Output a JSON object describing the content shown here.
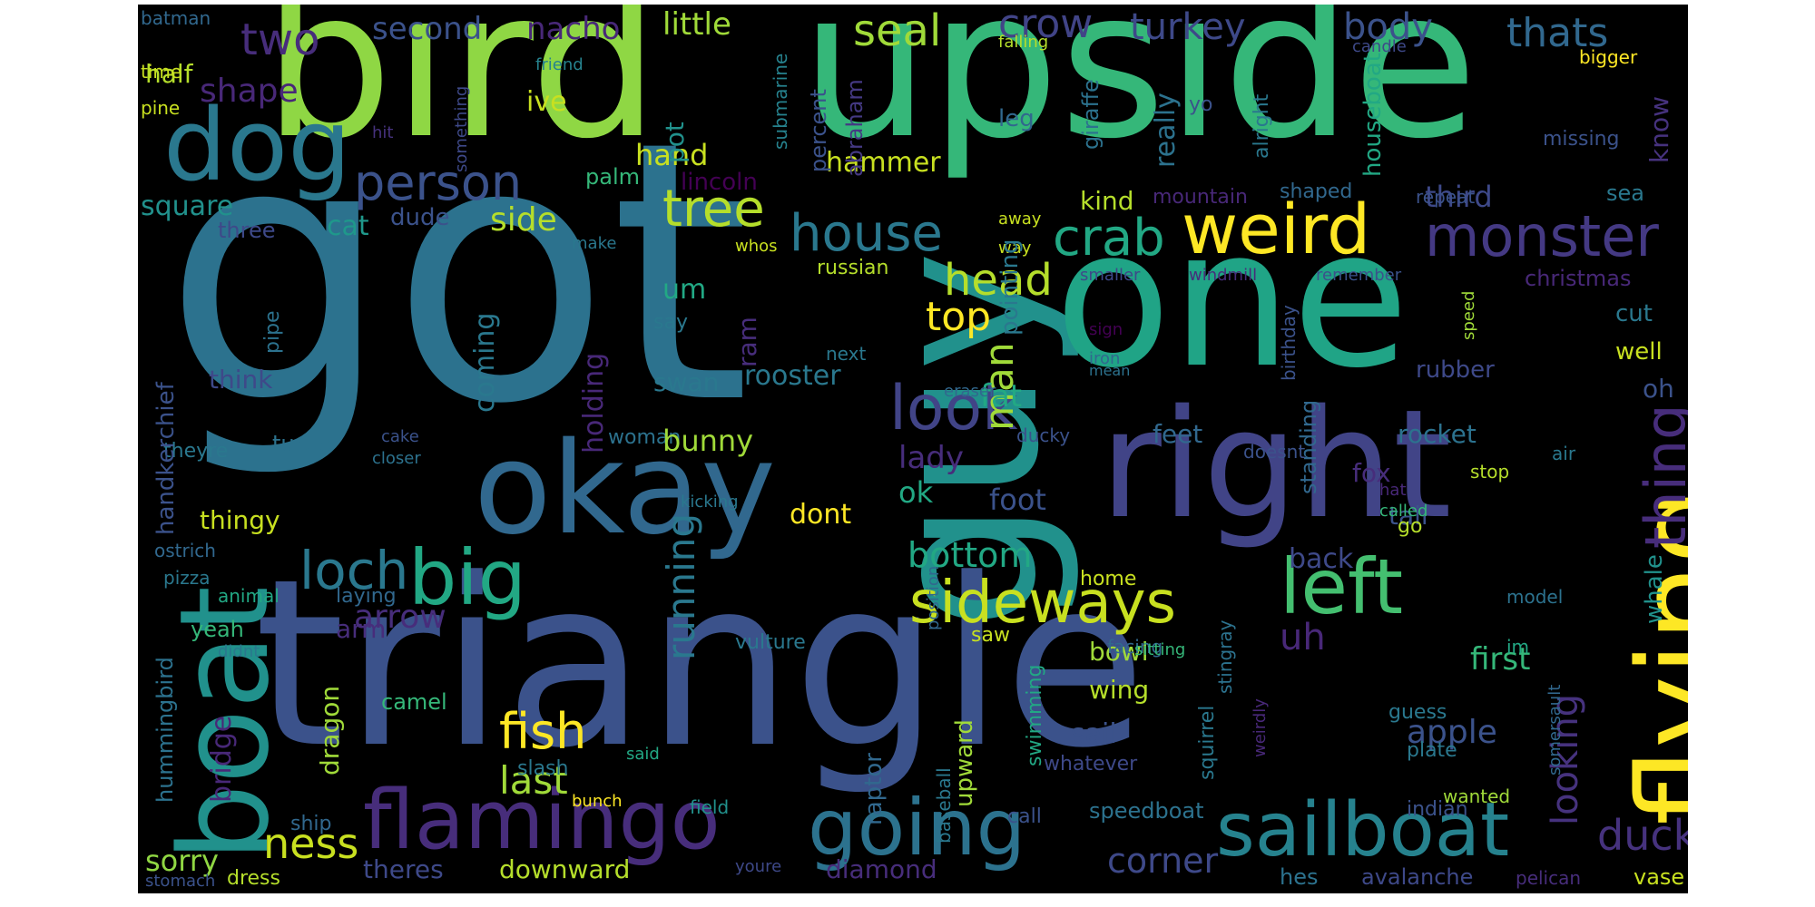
{
  "words": [
    {
      "text": "got",
      "color": "#2c728e"
    },
    {
      "text": "triangle",
      "color": "#3b528b"
    },
    {
      "text": "bird",
      "color": "#8fd744"
    },
    {
      "text": "upside",
      "color": "#35b779"
    },
    {
      "text": "guy",
      "color": "#21918c"
    },
    {
      "text": "one",
      "color": "#20a486"
    },
    {
      "text": "right",
      "color": "#414487"
    },
    {
      "text": "okay",
      "color": "#31688e"
    },
    {
      "text": "flying",
      "color": "#fde725"
    },
    {
      "text": "boat",
      "color": "#21918c"
    },
    {
      "text": "dog",
      "color": "#2a788e"
    },
    {
      "text": "flamingo",
      "color": "#472d7b"
    },
    {
      "text": "sailboat",
      "color": "#26828e"
    },
    {
      "text": "going",
      "color": "#2c728e"
    },
    {
      "text": "big",
      "color": "#22a884"
    },
    {
      "text": "left",
      "color": "#44bf70"
    },
    {
      "text": "sideways",
      "color": "#c8e020"
    },
    {
      "text": "weird",
      "color": "#fde725"
    },
    {
      "text": "monster",
      "color": "#443983"
    },
    {
      "text": "house",
      "color": "#2a788e"
    },
    {
      "text": "tree",
      "color": "#b5de2b"
    },
    {
      "text": "person",
      "color": "#3b528b"
    },
    {
      "text": "crab",
      "color": "#22a884"
    },
    {
      "text": "head",
      "color": "#b5de2b"
    },
    {
      "text": "look",
      "color": "#414487"
    },
    {
      "text": "thing",
      "color": "#472d7b"
    },
    {
      "text": "loch",
      "color": "#2a788e"
    },
    {
      "text": "fish",
      "color": "#fde725"
    },
    {
      "text": "ness",
      "color": "#c8e020"
    },
    {
      "text": "duck",
      "color": "#46327e"
    },
    {
      "text": "seal",
      "color": "#a0da39"
    },
    {
      "text": "crow",
      "color": "#414487"
    },
    {
      "text": "turkey",
      "color": "#3e4989"
    },
    {
      "text": "body",
      "color": "#3b528b"
    },
    {
      "text": "thats",
      "color": "#31688e"
    },
    {
      "text": "two",
      "color": "#472d7b"
    },
    {
      "text": "second",
      "color": "#3b528b"
    },
    {
      "text": "nacho",
      "color": "#482878"
    },
    {
      "text": "little",
      "color": "#a0da39"
    },
    {
      "text": "shape",
      "color": "#482878"
    },
    {
      "text": "half",
      "color": "#b5de2b"
    },
    {
      "text": "top",
      "color": "#fde725"
    },
    {
      "text": "man",
      "color": "#a0da39"
    },
    {
      "text": "running",
      "color": "#2a788e"
    },
    {
      "text": "bottom",
      "color": "#22a884"
    },
    {
      "text": "sorry",
      "color": "#90d743"
    },
    {
      "text": "last",
      "color": "#a0da39"
    },
    {
      "text": "corner",
      "color": "#3e4989"
    },
    {
      "text": "looking",
      "color": "#46327e"
    },
    {
      "text": "apple",
      "color": "#3b528b"
    },
    {
      "text": "arrow",
      "color": "#472d7b"
    },
    {
      "text": "uh",
      "color": "#482878"
    },
    {
      "text": "square",
      "color": "#21918c"
    },
    {
      "text": "side",
      "color": "#b5de2b"
    },
    {
      "text": "cat",
      "color": "#1f988b"
    },
    {
      "text": "dude",
      "color": "#3b528b"
    },
    {
      "text": "three",
      "color": "#3e4989"
    },
    {
      "text": "kind",
      "color": "#b5de2b"
    },
    {
      "text": "hammer",
      "color": "#c8e020"
    },
    {
      "text": "hand",
      "color": "#c8e020"
    },
    {
      "text": "palm",
      "color": "#35b779"
    },
    {
      "text": "ive",
      "color": "#c8e020"
    },
    {
      "text": "pot",
      "color": "#21918c"
    },
    {
      "text": "abraham",
      "color": "#443983"
    },
    {
      "text": "percent",
      "color": "#3b528b"
    },
    {
      "text": "leg",
      "color": "#31688e"
    },
    {
      "text": "giraffe",
      "color": "#2c728e"
    },
    {
      "text": "really",
      "color": "#2c728e"
    },
    {
      "text": "yo",
      "color": "#3b528b"
    },
    {
      "text": "alright",
      "color": "#2a788e"
    },
    {
      "text": "houseboat",
      "color": "#22a884"
    },
    {
      "text": "know",
      "color": "#46327e"
    },
    {
      "text": "missing",
      "color": "#3b528b"
    },
    {
      "text": "third",
      "color": "#3e4989"
    },
    {
      "text": "sea",
      "color": "#2a788e"
    },
    {
      "text": "shaped",
      "color": "#31688e"
    },
    {
      "text": "repeat",
      "color": "#3b528b"
    },
    {
      "text": "mountain",
      "color": "#482878"
    },
    {
      "text": "lincoln",
      "color": "#440154"
    },
    {
      "text": "submarine",
      "color": "#26828e"
    },
    {
      "text": "something",
      "color": "#3e4989"
    },
    {
      "text": "hit",
      "color": "#46327e"
    },
    {
      "text": "friend",
      "color": "#26828e"
    },
    {
      "text": "falling",
      "color": "#b5de2b"
    },
    {
      "text": "candle",
      "color": "#3e4989"
    },
    {
      "text": "bigger",
      "color": "#fde725"
    },
    {
      "text": "batman",
      "color": "#31688e"
    },
    {
      "text": "time",
      "color": "#c8e020"
    },
    {
      "text": "pine",
      "color": "#c8e020"
    },
    {
      "text": "christmas",
      "color": "#482878"
    },
    {
      "text": "cut",
      "color": "#2a788e"
    },
    {
      "text": "well",
      "color": "#c8e020"
    },
    {
      "text": "oh",
      "color": "#3b528b"
    },
    {
      "text": "rubber",
      "color": "#3e4989"
    },
    {
      "text": "rocket",
      "color": "#2c728e"
    },
    {
      "text": "fox",
      "color": "#472d7b"
    },
    {
      "text": "tail",
      "color": "#3b528b"
    },
    {
      "text": "whale",
      "color": "#21918c"
    },
    {
      "text": "first",
      "color": "#35b779"
    },
    {
      "text": "standing",
      "color": "#31688e"
    },
    {
      "text": "birthday",
      "color": "#3b528b"
    },
    {
      "text": "remember",
      "color": "#3b528b"
    },
    {
      "text": "windmill",
      "color": "#472d7b"
    },
    {
      "text": "smaller",
      "color": "#3e4989"
    },
    {
      "text": "way",
      "color": "#c8e020"
    },
    {
      "text": "away",
      "color": "#c8e020"
    },
    {
      "text": "whos",
      "color": "#c8e020"
    },
    {
      "text": "speed",
      "color": "#a0da39"
    },
    {
      "text": "sign",
      "color": "#440154"
    },
    {
      "text": "iron",
      "color": "#31688e"
    },
    {
      "text": "mean",
      "color": "#2c728e"
    },
    {
      "text": "air",
      "color": "#2a788e"
    },
    {
      "text": "stop",
      "color": "#b5de2b"
    },
    {
      "text": "hat",
      "color": "#482878"
    },
    {
      "text": "called",
      "color": "#35b779"
    },
    {
      "text": "doesnt",
      "color": "#3b528b"
    },
    {
      "text": "feet",
      "color": "#31688e"
    },
    {
      "text": "back",
      "color": "#3e4989"
    },
    {
      "text": "go",
      "color": "#b5de2b"
    },
    {
      "text": "model",
      "color": "#2c728e"
    },
    {
      "text": "im",
      "color": "#22a884"
    },
    {
      "text": "guess",
      "color": "#2a788e"
    },
    {
      "text": "somersault",
      "color": "#31688e"
    },
    {
      "text": "plate",
      "color": "#2a788e"
    },
    {
      "text": "indian",
      "color": "#3b528b"
    },
    {
      "text": "wanted",
      "color": "#a0da39"
    },
    {
      "text": "hes",
      "color": "#2c728e"
    },
    {
      "text": "avalanche",
      "color": "#3e4989"
    },
    {
      "text": "pelican",
      "color": "#472d7b"
    },
    {
      "text": "vase",
      "color": "#c8e020"
    },
    {
      "text": "speedboat",
      "color": "#2c728e"
    },
    {
      "text": "squirrel",
      "color": "#2a788e"
    },
    {
      "text": "weirdly",
      "color": "#482878"
    },
    {
      "text": "stingray",
      "color": "#2c728e"
    },
    {
      "text": "sail",
      "color": "#3b528b"
    },
    {
      "text": "bowl",
      "color": "#a0da39"
    },
    {
      "text": "wing",
      "color": "#b5de2b"
    },
    {
      "text": "whatever",
      "color": "#3e4989"
    },
    {
      "text": "call",
      "color": "#3b528b"
    },
    {
      "text": "facing",
      "color": "#31688e"
    },
    {
      "text": "sitting",
      "color": "#35b779"
    },
    {
      "text": "swimming",
      "color": "#22a884"
    },
    {
      "text": "baseball",
      "color": "#2a788e"
    },
    {
      "text": "position",
      "color": "#31688e"
    },
    {
      "text": "foot",
      "color": "#3b528b"
    },
    {
      "text": "upward",
      "color": "#a0da39"
    },
    {
      "text": "raptor",
      "color": "#31688e"
    },
    {
      "text": "saw",
      "color": "#c8e020"
    },
    {
      "text": "home",
      "color": "#c8e020"
    },
    {
      "text": "ok",
      "color": "#22a884"
    },
    {
      "text": "lady",
      "color": "#472d7b"
    },
    {
      "text": "dont",
      "color": "#fde725"
    },
    {
      "text": "fat",
      "color": "#22a884"
    },
    {
      "text": "pointing",
      "color": "#2a788e"
    },
    {
      "text": "ducky",
      "color": "#3b528b"
    },
    {
      "text": "eraser",
      "color": "#31688e"
    },
    {
      "text": "next",
      "color": "#2a788e"
    },
    {
      "text": "russian",
      "color": "#b5de2b"
    },
    {
      "text": "kicking",
      "color": "#2a788e"
    },
    {
      "text": "ram",
      "color": "#472d7b"
    },
    {
      "text": "vulture",
      "color": "#2a788e"
    },
    {
      "text": "woman",
      "color": "#2c728e"
    },
    {
      "text": "bunny",
      "color": "#a0da39"
    },
    {
      "text": "rooster",
      "color": "#2a788e"
    },
    {
      "text": "swan",
      "color": "#2a788e"
    },
    {
      "text": "say",
      "color": "#2a788e"
    },
    {
      "text": "um",
      "color": "#22a884"
    },
    {
      "text": "holding",
      "color": "#482878"
    },
    {
      "text": "coming",
      "color": "#2a788e"
    },
    {
      "text": "pipe",
      "color": "#2c728e"
    },
    {
      "text": "think",
      "color": "#3e4989"
    },
    {
      "text": "theyre",
      "color": "#2a788e"
    },
    {
      "text": "turtle",
      "color": "#2c728e"
    },
    {
      "text": "cake",
      "color": "#3b528b"
    },
    {
      "text": "closer",
      "color": "#2c728e"
    },
    {
      "text": "thingy",
      "color": "#c8e020"
    },
    {
      "text": "pizza",
      "color": "#2a788e"
    },
    {
      "text": "animal",
      "color": "#22a884"
    },
    {
      "text": "laying",
      "color": "#31688e"
    },
    {
      "text": "yeah",
      "color": "#35b779"
    },
    {
      "text": "arm",
      "color": "#472d7b"
    },
    {
      "text": "didnt",
      "color": "#2a788e"
    },
    {
      "text": "camel",
      "color": "#35b779"
    },
    {
      "text": "dragon",
      "color": "#a0da39"
    },
    {
      "text": "bridge",
      "color": "#482878"
    },
    {
      "text": "ship",
      "color": "#31688e"
    },
    {
      "text": "slash",
      "color": "#2a788e"
    },
    {
      "text": "said",
      "color": "#22a884"
    },
    {
      "text": "bunch",
      "color": "#fde725"
    },
    {
      "text": "field",
      "color": "#21918c"
    },
    {
      "text": "stomach",
      "color": "#3b528b"
    },
    {
      "text": "dress",
      "color": "#b5de2b"
    },
    {
      "text": "youre",
      "color": "#3e4989"
    },
    {
      "text": "theres",
      "color": "#3e4989"
    },
    {
      "text": "downward",
      "color": "#b5de2b"
    },
    {
      "text": "diamond",
      "color": "#472d7b"
    },
    {
      "text": "handkerchief",
      "color": "#3b528b"
    },
    {
      "text": "hummingbird",
      "color": "#2c728e"
    },
    {
      "text": "ostrich",
      "color": "#31688e"
    },
    {
      "text": "make",
      "color": "#2a788e"
    }
  ]
}
